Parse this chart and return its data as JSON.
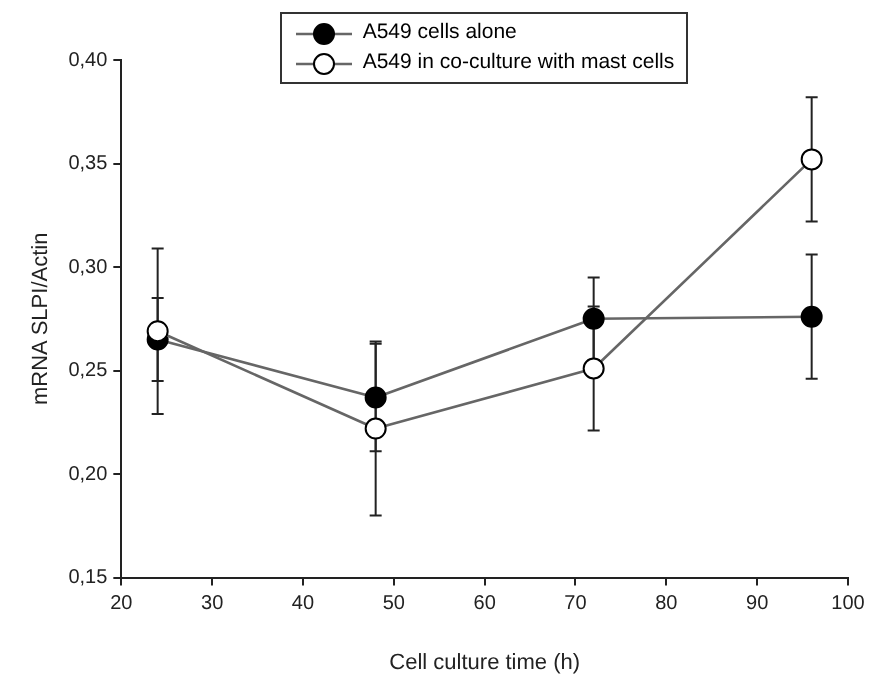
{
  "chart_data": {
    "type": "line",
    "xlabel": "Cell culture time (h)",
    "ylabel": "mRNA SLPI/Actin",
    "x": [
      24,
      48,
      72,
      96
    ],
    "series": [
      {
        "name": "A549 cells alone",
        "color": "#000000",
        "values": [
          0.265,
          0.237,
          0.275,
          0.276
        ],
        "errors": [
          0.02,
          0.026,
          0.02,
          0.03
        ]
      },
      {
        "name": "A549 in co-culture with mast cells",
        "color": "#ffffff",
        "values": [
          0.269,
          0.222,
          0.251,
          0.352
        ],
        "errors": [
          0.04,
          0.042,
          0.03,
          0.03
        ]
      }
    ],
    "xlim": [
      20,
      100
    ],
    "xticks": [
      20,
      30,
      40,
      50,
      60,
      70,
      80,
      90,
      100
    ],
    "ylim": [
      0.15,
      0.4
    ],
    "yticks": [
      {
        "value": 0.15,
        "label": "0,15"
      },
      {
        "value": 0.2,
        "label": "0,20"
      },
      {
        "value": 0.25,
        "label": "0,25"
      },
      {
        "value": 0.3,
        "label": "0,30"
      },
      {
        "value": 0.35,
        "label": "0,35"
      },
      {
        "value": 0.4,
        "label": "0,40"
      }
    ],
    "grid": false,
    "legend": "top",
    "marker": "circle",
    "line_style": "solid"
  }
}
